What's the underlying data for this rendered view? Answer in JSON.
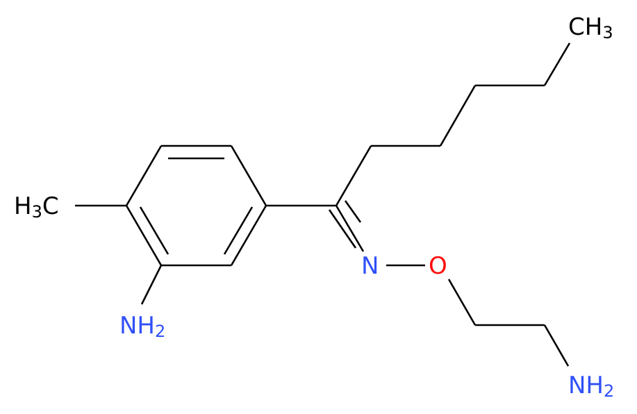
{
  "nodes": [
    {
      "label": [
        "CH",
        "3"
      ],
      "color": "#000000"
    },
    {
      "label": [
        "H",
        "3",
        "C"
      ],
      "color": "#000000"
    },
    {
      "label": [
        "NH",
        "2"
      ],
      "color": "#3050F8"
    },
    {
      "label": [
        "N"
      ],
      "color": "#3050F8"
    },
    {
      "label": [
        "O"
      ],
      "color": "#FF0D0D"
    },
    {
      "label": [
        "NH",
        "2"
      ],
      "color": "#3050F8"
    }
  ]
}
